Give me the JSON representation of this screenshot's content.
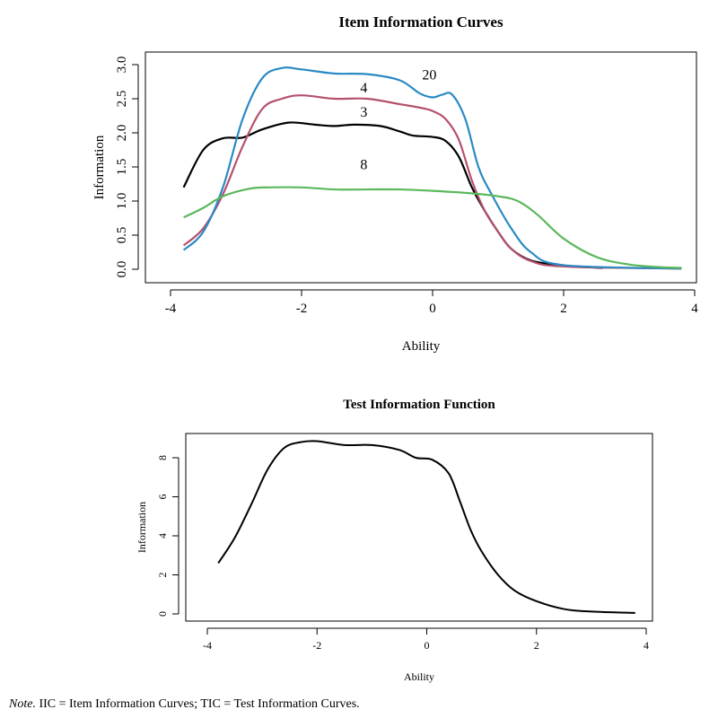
{
  "chart_data": [
    {
      "type": "line",
      "title": "Item Information Curves",
      "xlabel": "Ability",
      "ylabel": "Information",
      "xlim": [
        -4,
        4
      ],
      "ylim": [
        0,
        3
      ],
      "xticks": [
        "-4",
        "-2",
        "0",
        "2",
        "4"
      ],
      "yticks": [
        "0.0",
        "0.5",
        "1.0",
        "1.5",
        "2.0",
        "2.5",
        "3.0"
      ],
      "grid": false,
      "series": [
        {
          "name": "3",
          "color": "#000000",
          "x": [
            -3.8,
            -3.5,
            -3.2,
            -2.9,
            -2.6,
            -2.2,
            -1.8,
            -1.5,
            -1.2,
            -0.8,
            -0.5,
            -0.3,
            0,
            0.2,
            0.4,
            0.6,
            0.8,
            1.0,
            1.2,
            1.5,
            2.0,
            2.6
          ],
          "y": [
            1.2,
            1.75,
            1.92,
            1.93,
            2.05,
            2.15,
            2.12,
            2.1,
            2.12,
            2.1,
            2.02,
            1.96,
            1.94,
            1.88,
            1.65,
            1.2,
            0.85,
            0.55,
            0.3,
            0.13,
            0.05,
            0.02
          ]
        },
        {
          "name": "4",
          "color": "#b5516c",
          "x": [
            -3.8,
            -3.5,
            -3.2,
            -2.9,
            -2.6,
            -2.3,
            -2.0,
            -1.5,
            -1.0,
            -0.5,
            -0.2,
            0,
            0.2,
            0.4,
            0.6,
            0.8,
            1.0,
            1.2,
            1.5,
            2.0,
            3.8
          ],
          "y": [
            0.35,
            0.6,
            1.1,
            1.8,
            2.35,
            2.5,
            2.55,
            2.5,
            2.5,
            2.42,
            2.37,
            2.32,
            2.2,
            1.9,
            1.3,
            0.85,
            0.55,
            0.3,
            0.12,
            0.04,
            0.01
          ]
        },
        {
          "name": "20",
          "color": "#2a8ac4",
          "x": [
            -3.8,
            -3.5,
            -3.2,
            -2.9,
            -2.6,
            -2.3,
            -2.0,
            -1.5,
            -1.0,
            -0.5,
            -0.2,
            0,
            0.15,
            0.3,
            0.5,
            0.7,
            0.9,
            1.2,
            1.5,
            2.0,
            3.8
          ],
          "y": [
            0.28,
            0.55,
            1.2,
            2.2,
            2.8,
            2.95,
            2.93,
            2.87,
            2.86,
            2.77,
            2.58,
            2.52,
            2.56,
            2.56,
            2.2,
            1.5,
            1.1,
            0.6,
            0.25,
            0.06,
            0.01
          ]
        },
        {
          "name": "8",
          "color": "#5cb85c",
          "x": [
            -3.8,
            -3.5,
            -3.2,
            -2.8,
            -2.5,
            -2.0,
            -1.5,
            -1.0,
            -0.5,
            0,
            0.5,
            1.0,
            1.3,
            1.6,
            2.0,
            2.5,
            3.0,
            3.5,
            3.8
          ],
          "y": [
            0.76,
            0.9,
            1.07,
            1.18,
            1.2,
            1.2,
            1.17,
            1.17,
            1.17,
            1.15,
            1.12,
            1.07,
            1.0,
            0.8,
            0.45,
            0.18,
            0.07,
            0.03,
            0.02
          ]
        }
      ],
      "annotations": [
        {
          "text": "20",
          "x": -0.05,
          "y": 2.85
        },
        {
          "text": "4",
          "x": -1.05,
          "y": 2.66
        },
        {
          "text": "3",
          "x": -1.05,
          "y": 2.3
        },
        {
          "text": "8",
          "x": -1.05,
          "y": 1.53
        }
      ]
    },
    {
      "type": "line",
      "title": "Test Information Function",
      "xlabel": "Ability",
      "ylabel": "Information",
      "xlim": [
        -4,
        4
      ],
      "ylim": [
        0,
        8
      ],
      "xticks": [
        "-4",
        "-2",
        "0",
        "2",
        "4"
      ],
      "yticks": [
        "0",
        "2",
        "4",
        "6",
        "8"
      ],
      "grid": false,
      "series": [
        {
          "color": "#000000",
          "x": [
            -3.8,
            -3.5,
            -3.2,
            -2.9,
            -2.6,
            -2.3,
            -2.0,
            -1.5,
            -1.0,
            -0.5,
            -0.2,
            0.1,
            0.4,
            0.6,
            0.8,
            1.0,
            1.3,
            1.6,
            2.0,
            2.5,
            3.0,
            3.8
          ],
          "y": [
            2.6,
            3.9,
            5.6,
            7.4,
            8.5,
            8.8,
            8.85,
            8.65,
            8.65,
            8.4,
            8.0,
            7.9,
            7.2,
            5.8,
            4.3,
            3.2,
            2.0,
            1.2,
            0.65,
            0.25,
            0.12,
            0.05
          ]
        }
      ]
    }
  ],
  "note": {
    "label": "Note.",
    "text": " IIC = Item Information Curves; TIC = Test Information Curves."
  }
}
